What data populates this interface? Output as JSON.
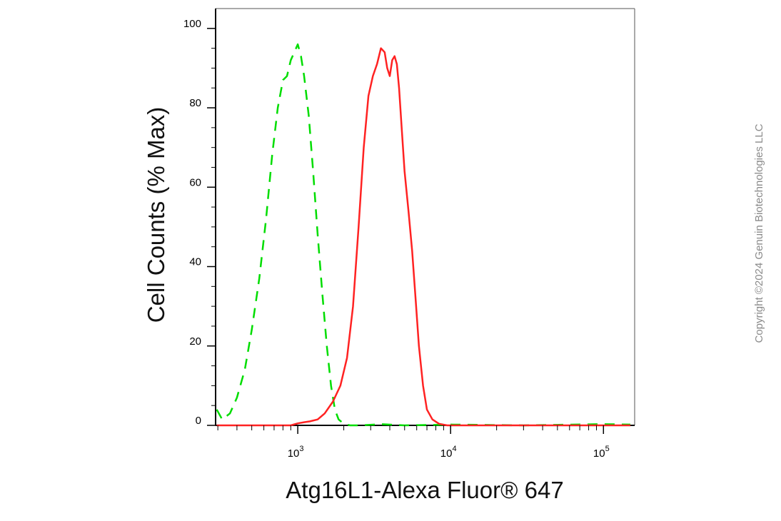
{
  "chart_data": {
    "type": "line",
    "xlabel": "Atg16L1-Alexa Fluor® 647",
    "ylabel": "Cell Counts (% Max)",
    "x_scale": "log",
    "xlim": [
      290,
      160000
    ],
    "ylim": [
      0,
      105
    ],
    "yticks": [
      0,
      20,
      40,
      60,
      80,
      100
    ],
    "xticks": [
      {
        "value": 1000,
        "base": "10",
        "exp": "3"
      },
      {
        "value": 10000,
        "base": "10",
        "exp": "4"
      },
      {
        "value": 100000,
        "base": "10",
        "exp": "5"
      }
    ],
    "series": [
      {
        "color": "#00dd00",
        "style": "dashed",
        "x": [
          295,
          320,
          360,
          400,
          450,
          500,
          560,
          620,
          680,
          740,
          800,
          850,
          900,
          950,
          1000,
          1050,
          1100,
          1180,
          1260,
          1350,
          1450,
          1550,
          1650,
          1750,
          1850,
          2000,
          2200,
          2600,
          3500,
          5000,
          10000,
          30000,
          100000,
          150000
        ],
        "y": [
          4,
          1.5,
          3,
          7,
          14,
          24,
          37,
          52,
          68,
          80,
          87,
          88,
          92,
          94,
          96,
          93,
          88,
          78,
          64,
          48,
          33,
          20,
          10,
          4,
          1.5,
          0.4,
          0,
          0,
          0.3,
          0,
          0.2,
          0,
          0.3,
          0.2
        ]
      },
      {
        "color": "#ff2222",
        "style": "solid",
        "x": [
          295,
          500,
          900,
          1000,
          1100,
          1200,
          1350,
          1500,
          1700,
          1900,
          2100,
          2300,
          2500,
          2700,
          2900,
          3100,
          3300,
          3500,
          3700,
          3850,
          4000,
          4150,
          4300,
          4450,
          4600,
          4800,
          5000,
          5300,
          5600,
          5900,
          6200,
          6600,
          7000,
          7600,
          8400,
          9500,
          11000,
          20000,
          50000,
          100000,
          150000
        ],
        "y": [
          0,
          0,
          0,
          0.5,
          0.8,
          1,
          1.5,
          3,
          6,
          10,
          17,
          30,
          50,
          70,
          83,
          88,
          91,
          95,
          94,
          90,
          88,
          92,
          93,
          91,
          85,
          74,
          64,
          54,
          44,
          32,
          20,
          10,
          4,
          1.5,
          0.4,
          0,
          0,
          0,
          0,
          0,
          0
        ]
      }
    ]
  },
  "copyright": "Copyright ©2024 Genuin Biotechnologies LLC"
}
